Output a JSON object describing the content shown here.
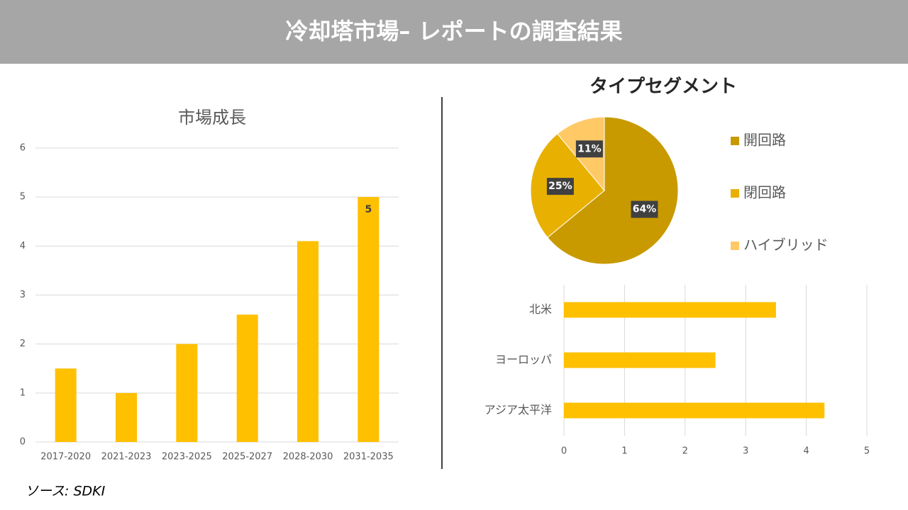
{
  "header": {
    "title": "冷却塔市場– レポートの調査結果"
  },
  "source": "ソース: SDKI",
  "chart_data": [
    {
      "type": "bar",
      "title": "市場成長",
      "categories": [
        "2017-2020",
        "2021-2023",
        "2023-2025",
        "2025-2027",
        "2028-2030",
        "2031-2035"
      ],
      "values": [
        1.5,
        1,
        2,
        2.6,
        4.1,
        5
      ],
      "value_labels": [
        null,
        null,
        null,
        null,
        null,
        "5"
      ],
      "color": "#ffc000",
      "ylim": [
        0,
        6
      ],
      "yticks": [
        0,
        1,
        2,
        3,
        4,
        5,
        6
      ],
      "grid": true
    },
    {
      "type": "pie",
      "title": "タイプセグメント",
      "categories": [
        "開回路",
        "閉回路",
        "ハイブリッド"
      ],
      "values": [
        64,
        25,
        11
      ],
      "value_labels": [
        "64%",
        "25%",
        "11%"
      ],
      "colors": [
        "#c89a00",
        "#e8b000",
        "#ffc966"
      ],
      "legend": "right"
    },
    {
      "type": "bar",
      "horizontal": true,
      "categories": [
        "北米",
        "ヨーロッパ",
        "アジア太平洋"
      ],
      "values": [
        3.5,
        2.5,
        4.3
      ],
      "color": "#ffc000",
      "xlim": [
        0,
        5
      ],
      "xticks": [
        0,
        1,
        2,
        3,
        4,
        5
      ],
      "grid": true
    }
  ]
}
